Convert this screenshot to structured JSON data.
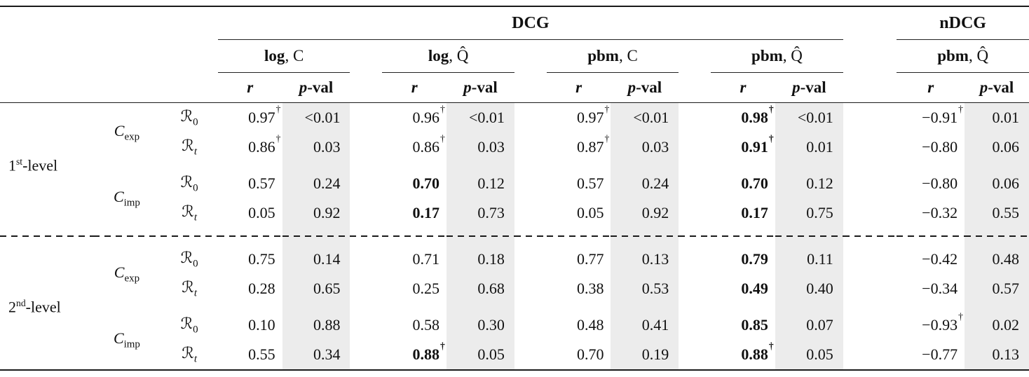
{
  "table": {
    "top_groups": [
      {
        "label": "DCG"
      },
      {
        "label": "nDCG"
      }
    ],
    "col_groups": [
      {
        "bold": "log",
        "rest": ", C"
      },
      {
        "bold": "log",
        "rest": ", Q̂"
      },
      {
        "bold": "pbm",
        "rest": ", C"
      },
      {
        "bold": "pbm",
        "rest": ", Q̂"
      },
      {
        "bold": "pbm",
        "rest": ", Q̂"
      }
    ],
    "stat_headers": [
      {
        "italic": "r",
        "rest": ""
      },
      {
        "italic": "p",
        "rest": "-val"
      }
    ],
    "row_levels": [
      {
        "label": {
          "base": "1",
          "sup": "st",
          "rest": "-level"
        },
        "conditions": [
          {
            "label": {
              "base": "C",
              "sub": "exp"
            },
            "rows": [
              {
                "metric": {
                  "base": "ℛ",
                  "sub": "0"
                },
                "cells": [
                  {
                    "r": "0.97",
                    "dag": true,
                    "p": "<0.01"
                  },
                  {
                    "r": "0.96",
                    "dag": true,
                    "p": "<0.01"
                  },
                  {
                    "r": "0.97",
                    "dag": true,
                    "p": "<0.01"
                  },
                  {
                    "r": "0.98",
                    "dag": true,
                    "bold": true,
                    "p": "<0.01"
                  },
                  {
                    "r": "−0.91",
                    "dag": true,
                    "p": "0.01"
                  }
                ]
              },
              {
                "metric": {
                  "base": "ℛ",
                  "sub": "t",
                  "sub_italic": true
                },
                "cells": [
                  {
                    "r": "0.86",
                    "dag": true,
                    "p": "0.03"
                  },
                  {
                    "r": "0.86",
                    "dag": true,
                    "p": "0.03"
                  },
                  {
                    "r": "0.87",
                    "dag": true,
                    "p": "0.03"
                  },
                  {
                    "r": "0.91",
                    "dag": true,
                    "bold": true,
                    "p": "0.01"
                  },
                  {
                    "r": "−0.80",
                    "p": "0.06"
                  }
                ]
              }
            ]
          },
          {
            "label": {
              "base": "C",
              "sub": "imp"
            },
            "rows": [
              {
                "metric": {
                  "base": "ℛ",
                  "sub": "0"
                },
                "cells": [
                  {
                    "r": "0.57",
                    "p": "0.24"
                  },
                  {
                    "r": "0.70",
                    "bold": true,
                    "p": "0.12"
                  },
                  {
                    "r": "0.57",
                    "p": "0.24"
                  },
                  {
                    "r": "0.70",
                    "bold": true,
                    "p": "0.12"
                  },
                  {
                    "r": "−0.80",
                    "p": "0.06"
                  }
                ]
              },
              {
                "metric": {
                  "base": "ℛ",
                  "sub": "t",
                  "sub_italic": true
                },
                "cells": [
                  {
                    "r": "0.05",
                    "p": "0.92"
                  },
                  {
                    "r": "0.17",
                    "bold": true,
                    "p": "0.73"
                  },
                  {
                    "r": "0.05",
                    "p": "0.92"
                  },
                  {
                    "r": "0.17",
                    "bold": true,
                    "p": "0.75"
                  },
                  {
                    "r": "−0.32",
                    "p": "0.55"
                  }
                ]
              }
            ]
          }
        ]
      },
      {
        "label": {
          "base": "2",
          "sup": "nd",
          "rest": "-level"
        },
        "conditions": [
          {
            "label": {
              "base": "C",
              "sub": "exp"
            },
            "rows": [
              {
                "metric": {
                  "base": "ℛ",
                  "sub": "0"
                },
                "cells": [
                  {
                    "r": "0.75",
                    "p": "0.14"
                  },
                  {
                    "r": "0.71",
                    "p": "0.18"
                  },
                  {
                    "r": "0.77",
                    "p": "0.13"
                  },
                  {
                    "r": "0.79",
                    "bold": true,
                    "p": "0.11"
                  },
                  {
                    "r": "−0.42",
                    "p": "0.48"
                  }
                ]
              },
              {
                "metric": {
                  "base": "ℛ",
                  "sub": "t",
                  "sub_italic": true
                },
                "cells": [
                  {
                    "r": "0.28",
                    "p": "0.65"
                  },
                  {
                    "r": "0.25",
                    "p": "0.68"
                  },
                  {
                    "r": "0.38",
                    "p": "0.53"
                  },
                  {
                    "r": "0.49",
                    "bold": true,
                    "p": "0.40"
                  },
                  {
                    "r": "−0.34",
                    "p": "0.57"
                  }
                ]
              }
            ]
          },
          {
            "label": {
              "base": "C",
              "sub": "imp"
            },
            "rows": [
              {
                "metric": {
                  "base": "ℛ",
                  "sub": "0"
                },
                "cells": [
                  {
                    "r": "0.10",
                    "p": "0.88"
                  },
                  {
                    "r": "0.58",
                    "p": "0.30"
                  },
                  {
                    "r": "0.48",
                    "p": "0.41"
                  },
                  {
                    "r": "0.85",
                    "bold": true,
                    "p": "0.07"
                  },
                  {
                    "r": "−0.93",
                    "dag": true,
                    "p": "0.02"
                  }
                ]
              },
              {
                "metric": {
                  "base": "ℛ",
                  "sub": "t",
                  "sub_italic": true
                },
                "cells": [
                  {
                    "r": "0.55",
                    "p": "0.34"
                  },
                  {
                    "r": "0.88",
                    "dag": true,
                    "bold": true,
                    "p": "0.05"
                  },
                  {
                    "r": "0.70",
                    "p": "0.19"
                  },
                  {
                    "r": "0.88",
                    "dag": true,
                    "bold": true,
                    "p": "0.05"
                  },
                  {
                    "r": "−0.77",
                    "p": "0.13"
                  }
                ]
              }
            ]
          }
        ]
      }
    ]
  },
  "symbols": {
    "dagger": "†"
  },
  "colors": {
    "pval_band": "#ececec",
    "rule": "#1a1a1a"
  }
}
